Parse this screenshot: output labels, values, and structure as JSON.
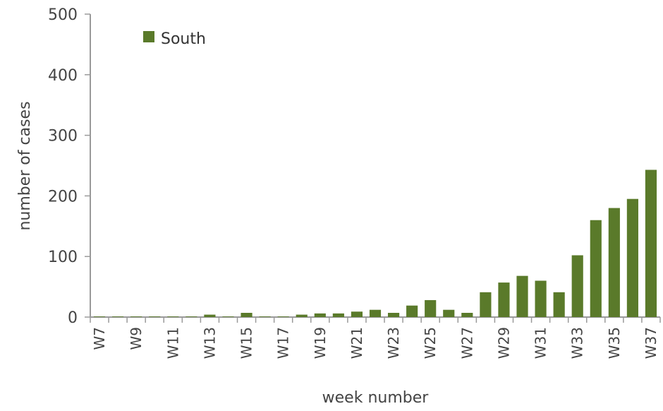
{
  "chart_data": {
    "type": "bar",
    "xlabel": "week number",
    "ylabel": "number of cases",
    "ylim": [
      0,
      500
    ],
    "yticks": [
      "0",
      "100",
      "200",
      "300",
      "400",
      "500"
    ],
    "categories": [
      "W7",
      "W8",
      "W9",
      "W10",
      "W11",
      "W12",
      "W13",
      "W14",
      "W15",
      "W16",
      "W17",
      "W18",
      "W19",
      "W20",
      "W21",
      "W22",
      "W23",
      "W24",
      "W25",
      "W26",
      "W27",
      "W28",
      "W29",
      "W30",
      "W31",
      "W32",
      "W33",
      "W34",
      "W35",
      "W36",
      "W37"
    ],
    "tick_labels": [
      "W7",
      "W9",
      "W11",
      "W13",
      "W15",
      "W17",
      "W19",
      "W21",
      "W23",
      "W25",
      "W27",
      "W29",
      "W31",
      "W33",
      "W35",
      "W37"
    ],
    "series": [
      {
        "name": "South",
        "color": "#5a7a2a",
        "values": [
          1,
          1,
          1,
          1,
          1,
          1,
          4,
          1,
          7,
          1,
          1,
          4,
          6,
          6,
          9,
          12,
          7,
          19,
          28,
          12,
          7,
          41,
          57,
          68,
          60,
          41,
          102,
          160,
          180,
          195,
          243
        ]
      }
    ],
    "legend_position": "top-left",
    "grid": false
  }
}
